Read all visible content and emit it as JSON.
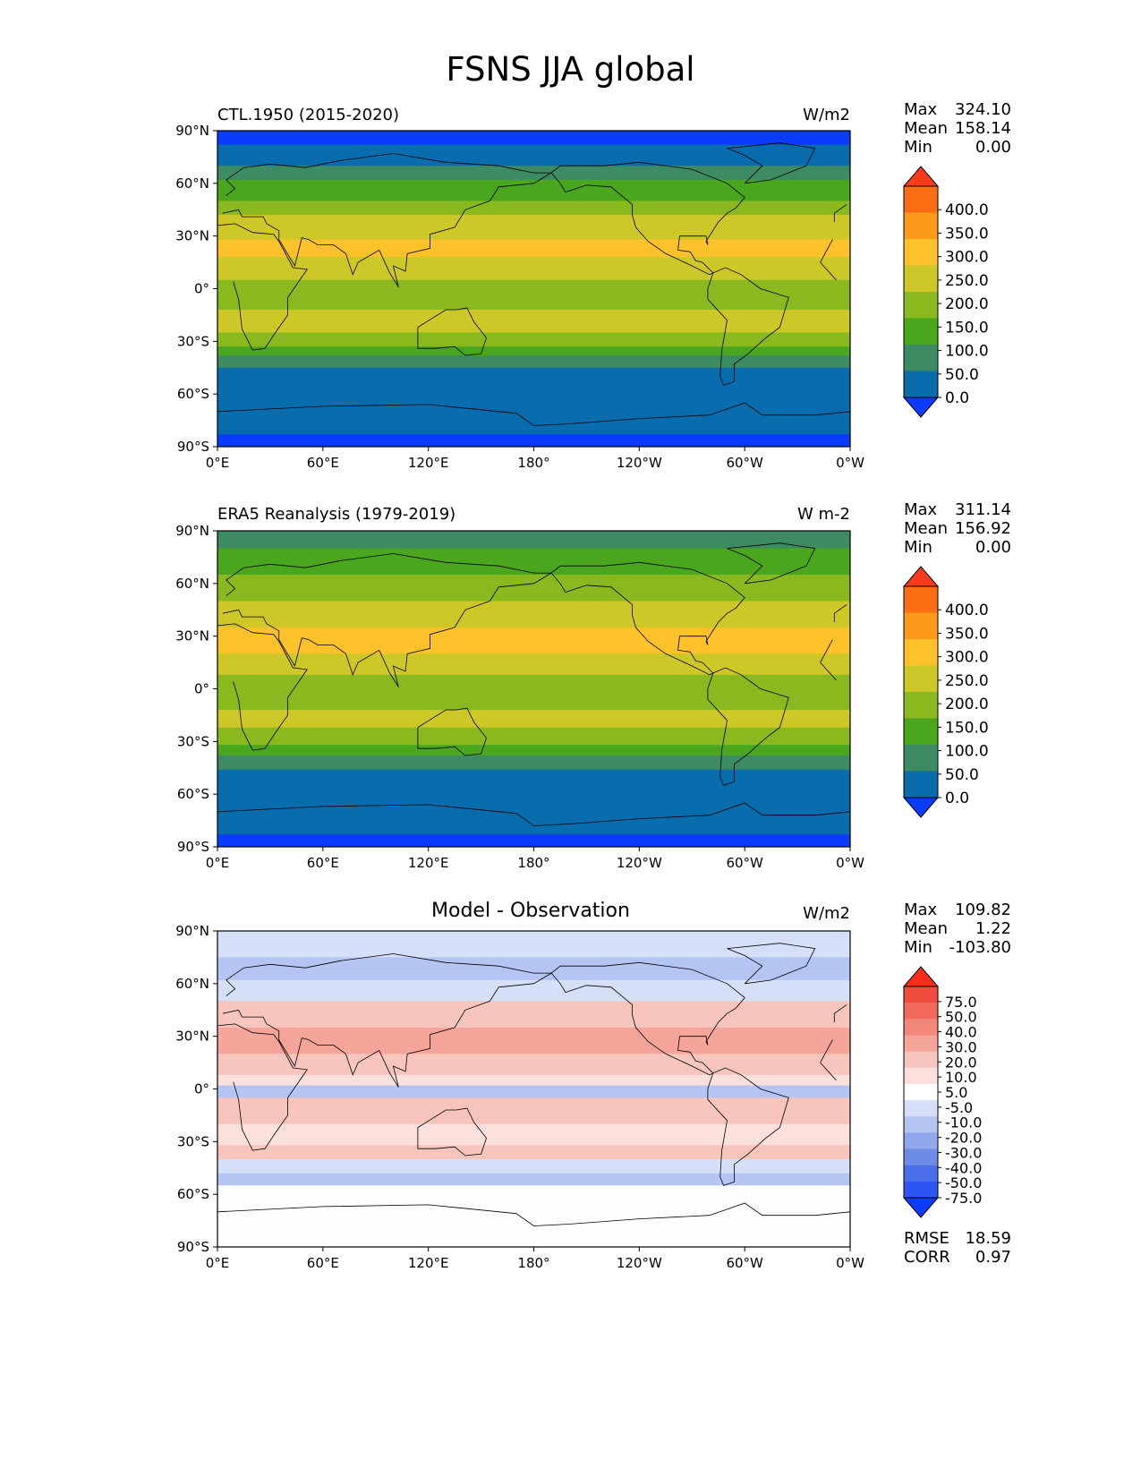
{
  "title": "FSNS JJA global",
  "lat_ticks": [
    "90°N",
    "60°N",
    "30°N",
    "0°",
    "30°S",
    "60°S",
    "90°S"
  ],
  "lon_ticks": [
    "0°E",
    "60°E",
    "120°E",
    "180°",
    "120°W",
    "60°W",
    "0°W"
  ],
  "colors": {
    "field_levels": [
      "#0a3bff",
      "#086cad",
      "#3d8b63",
      "#4aa61d",
      "#89b81f",
      "#cdc827",
      "#fdc22a",
      "#fd9a1a",
      "#fc6e13",
      "#fd3b1c"
    ],
    "diff_levels": [
      "#0a3bff",
      "#2c55f3",
      "#4b6fea",
      "#6d8ce7",
      "#91a8ed",
      "#b4c4f3",
      "#d5e0f8",
      "#ffffff",
      "#fbe0dc",
      "#f8c5bd",
      "#f6a59b",
      "#f4877c",
      "#f16a5d",
      "#ee4c3f",
      "#fd2d1c"
    ]
  },
  "panels": [
    {
      "left_label": "CTL.1950 (2015-2020)",
      "units": "W/m2",
      "stats": [
        {
          "label": "Max",
          "value": "324.10"
        },
        {
          "label": "Mean",
          "value": "158.14"
        },
        {
          "label": "Min",
          "value": "0.00"
        }
      ],
      "colorbar_labels": [
        "400.0",
        "350.0",
        "300.0",
        "250.0",
        "200.0",
        "150.0",
        "100.0",
        "50.0",
        "0.0"
      ],
      "zonal_profile": [
        {
          "lat": 90,
          "level": 0
        },
        {
          "lat": 82,
          "level": 1
        },
        {
          "lat": 70,
          "level": 2
        },
        {
          "lat": 62,
          "level": 3
        },
        {
          "lat": 50,
          "level": 4
        },
        {
          "lat": 42,
          "level": 5
        },
        {
          "lat": 28,
          "level": 6
        },
        {
          "lat": 18,
          "level": 5
        },
        {
          "lat": 5,
          "level": 4
        },
        {
          "lat": -12,
          "level": 5
        },
        {
          "lat": -25,
          "level": 4
        },
        {
          "lat": -33,
          "level": 3
        },
        {
          "lat": -38,
          "level": 2
        },
        {
          "lat": -45,
          "level": 1
        },
        {
          "lat": -83,
          "level": 0
        }
      ]
    },
    {
      "left_label": "ERA5 Reanalysis (1979-2019)",
      "units": "W m-2",
      "stats": [
        {
          "label": "Max",
          "value": "311.14"
        },
        {
          "label": "Mean",
          "value": "156.92"
        },
        {
          "label": "Min",
          "value": "0.00"
        }
      ],
      "colorbar_labels": [
        "400.0",
        "350.0",
        "300.0",
        "250.0",
        "200.0",
        "150.0",
        "100.0",
        "50.0",
        "0.0"
      ],
      "zonal_profile": [
        {
          "lat": 90,
          "level": 2
        },
        {
          "lat": 80,
          "level": 3
        },
        {
          "lat": 65,
          "level": 4
        },
        {
          "lat": 50,
          "level": 5
        },
        {
          "lat": 35,
          "level": 6
        },
        {
          "lat": 20,
          "level": 5
        },
        {
          "lat": 8,
          "level": 4
        },
        {
          "lat": -12,
          "level": 5
        },
        {
          "lat": -22,
          "level": 4
        },
        {
          "lat": -32,
          "level": 3
        },
        {
          "lat": -38,
          "level": 2
        },
        {
          "lat": -46,
          "level": 1
        },
        {
          "lat": -83,
          "level": 0
        }
      ]
    },
    {
      "center_title": "Model - Observation",
      "units": "W/m2",
      "stats": [
        {
          "label": "Max",
          "value": "109.82"
        },
        {
          "label": "Mean",
          "value": "1.22"
        },
        {
          "label": "Min",
          "value": "-103.80"
        }
      ],
      "colorbar_labels": [
        "75.0",
        "50.0",
        "40.0",
        "30.0",
        "20.0",
        "10.0",
        "5.0",
        "-5.0",
        "-10.0",
        "-20.0",
        "-30.0",
        "-40.0",
        "-50.0",
        "-75.0"
      ],
      "metrics": [
        {
          "label": "RMSE",
          "value": "18.59"
        },
        {
          "label": "CORR",
          "value": "0.97"
        }
      ],
      "zonal_profile": [
        {
          "lat": 90,
          "level": 6
        },
        {
          "lat": 75,
          "level": 5
        },
        {
          "lat": 62,
          "level": 6
        },
        {
          "lat": 50,
          "level": 9
        },
        {
          "lat": 35,
          "level": 10
        },
        {
          "lat": 20,
          "level": 9
        },
        {
          "lat": 8,
          "level": 8
        },
        {
          "lat": 2,
          "level": 5
        },
        {
          "lat": -5,
          "level": 9
        },
        {
          "lat": -20,
          "level": 8
        },
        {
          "lat": -32,
          "level": 9
        },
        {
          "lat": -40,
          "level": 6
        },
        {
          "lat": -48,
          "level": 5
        },
        {
          "lat": -55,
          "level": 7
        }
      ]
    }
  ]
}
